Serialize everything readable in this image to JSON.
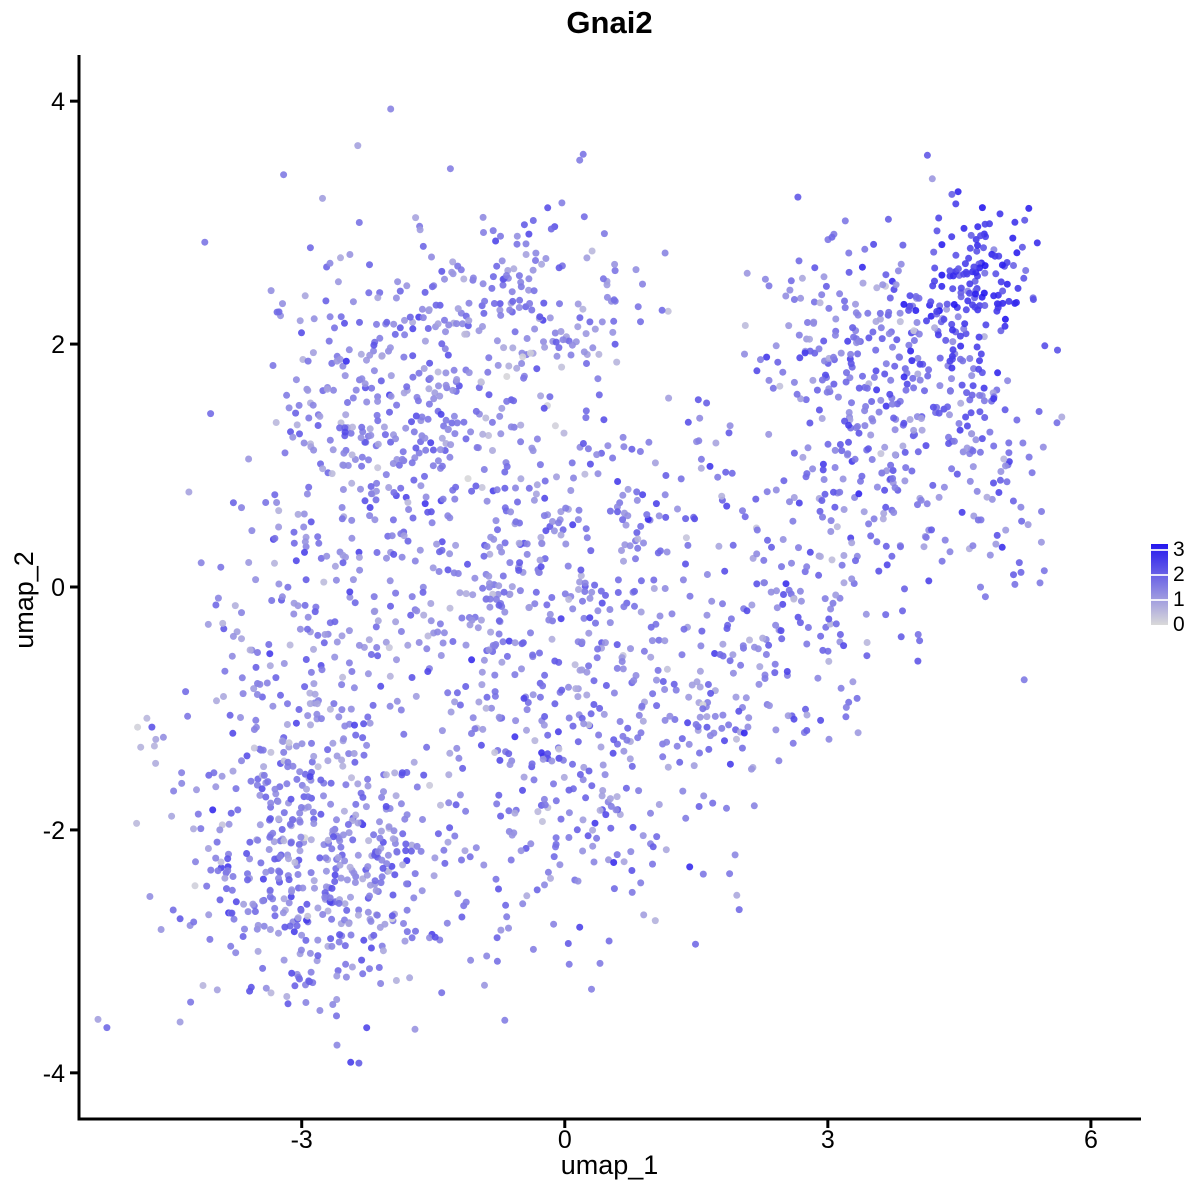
{
  "title": "Gnai2",
  "axes": {
    "x": {
      "label": "umap_1",
      "tick_labels": [
        "-3",
        "0",
        "3",
        "6"
      ],
      "tick_values": [
        -3,
        0,
        3,
        6
      ],
      "range": [
        -5.54,
        6.56
      ]
    },
    "y": {
      "label": "umap_2",
      "tick_labels": [
        "-4",
        "-2",
        "0",
        "2",
        "4"
      ],
      "tick_values": [
        -4,
        -2,
        0,
        2,
        4
      ],
      "range": [
        -4.38,
        4.38
      ]
    }
  },
  "legend": {
    "tick_labels": [
      "3",
      "2",
      "1",
      "0"
    ],
    "tick_values": [
      3,
      2,
      1,
      0
    ],
    "bar_value_range": [
      0,
      3.25
    ],
    "low_color": "#d9d9d9",
    "high_color": "#2417ee"
  },
  "chart_data": {
    "type": "scatter",
    "title": "Gnai2",
    "xlabel": "umap_1",
    "ylabel": "umap_2",
    "xlim": [
      -5.54,
      6.56
    ],
    "ylim": [
      -4.38,
      4.38
    ],
    "x_ticks": [
      -3,
      0,
      3,
      6
    ],
    "y_ticks": [
      -4,
      -2,
      0,
      2,
      4
    ],
    "grid": false,
    "legend_position": "right",
    "colorbar": {
      "ticks": [
        0,
        1,
        2,
        3
      ],
      "low": "#d9d9d9",
      "high": "#2417ee",
      "value_range": [
        0,
        3.25
      ]
    },
    "point_radius_px": 3.5,
    "point_opacity": 0.9,
    "seed": 20240601,
    "n_points": 2602,
    "description": "UMAP feature plot of Gnai2 expression (0 = light grey, 3 = dark blue). Point cloud spans x -4.7..5.5, y -3.5..3.15: a dense lower-left mass, a broad upper-left blob, a diagonal right arm rising to a dark high-expression cluster at the top right tip, and a small outlier clump at far left.",
    "clusters": [
      {
        "name": "far-left-outlier",
        "cx": -4.72,
        "cy": -1.27,
        "sdx": 0.1,
        "sdy": 0.15,
        "n": 7,
        "vmean": 1.2,
        "vsd": 0.7
      },
      {
        "name": "bottom-left-dense",
        "cx": -2.7,
        "cy": -2.3,
        "sdx": 0.8,
        "sdy": 0.6,
        "n": 500,
        "vmean": 1.55,
        "vsd": 0.55
      },
      {
        "name": "left-mid",
        "cx": -3.0,
        "cy": -0.7,
        "sdx": 0.55,
        "sdy": 0.65,
        "n": 170,
        "vmean": 1.45,
        "vsd": 0.5
      },
      {
        "name": "upper-left-blob",
        "cx": -2.0,
        "cy": 1.4,
        "sdx": 0.8,
        "sdy": 0.75,
        "n": 380,
        "vmean": 1.45,
        "vsd": 0.5
      },
      {
        "name": "top-band",
        "cx": -0.45,
        "cy": 2.35,
        "sdx": 0.75,
        "sdy": 0.42,
        "n": 150,
        "vmean": 1.4,
        "vsd": 0.5
      },
      {
        "name": "center-blob",
        "cx": -0.7,
        "cy": 0.1,
        "sdx": 0.75,
        "sdy": 0.75,
        "n": 250,
        "vmean": 1.45,
        "vsd": 0.5
      },
      {
        "name": "bottom-center",
        "cx": 0.3,
        "cy": -1.6,
        "sdx": 0.7,
        "sdy": 0.7,
        "n": 230,
        "vmean": 1.5,
        "vsd": 0.5
      },
      {
        "name": "center-right-band",
        "cx": 0.9,
        "cy": 0.2,
        "sdx": 0.6,
        "sdy": 0.8,
        "n": 150,
        "vmean": 1.5,
        "vsd": 0.5
      },
      {
        "name": "arm-start",
        "cx": 1.9,
        "cy": -0.9,
        "sdx": 0.45,
        "sdy": 0.45,
        "n": 70,
        "vmean": 1.5,
        "vsd": 0.5
      },
      {
        "name": "arm-lower-mid",
        "cx": 2.7,
        "cy": 0.0,
        "sdx": 0.55,
        "sdy": 0.65,
        "n": 120,
        "vmean": 1.6,
        "vsd": 0.5
      },
      {
        "name": "arm-mid",
        "cx": 3.5,
        "cy": 1.0,
        "sdx": 0.6,
        "sdy": 0.7,
        "n": 150,
        "vmean": 1.65,
        "vsd": 0.5
      },
      {
        "name": "arm-top-left",
        "cx": 3.1,
        "cy": 2.15,
        "sdx": 0.55,
        "sdy": 0.4,
        "n": 100,
        "vmean": 1.6,
        "vsd": 0.5
      },
      {
        "name": "arm-upper",
        "cx": 4.2,
        "cy": 1.8,
        "sdx": 0.5,
        "sdy": 0.55,
        "n": 150,
        "vmean": 1.9,
        "vsd": 0.5
      },
      {
        "name": "top-right-dark",
        "cx": 4.65,
        "cy": 2.55,
        "sdx": 0.33,
        "sdy": 0.33,
        "n": 120,
        "vmean": 2.6,
        "vsd": 0.4
      },
      {
        "name": "far-right-edge",
        "cx": 5.0,
        "cy": 0.8,
        "sdx": 0.3,
        "sdy": 0.55,
        "n": 55,
        "vmean": 1.8,
        "vsd": 0.5
      }
    ]
  }
}
